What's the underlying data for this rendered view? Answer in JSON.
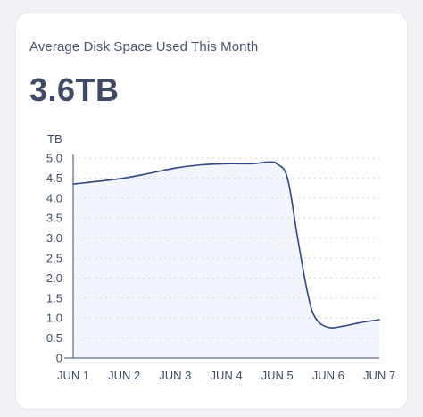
{
  "card": {
    "title": "Average Disk Space Used This Month",
    "value": "3.6TB"
  },
  "colors": {
    "line": "#2f4585",
    "area": "#f3f5fc",
    "grid": "#d6d9e0",
    "axis": "#3f4b66"
  },
  "chart_data": {
    "type": "area",
    "ylabel": "TB",
    "xlabel": "",
    "categories": [
      "JUN 1",
      "JUN 2",
      "JUN 3",
      "JUN 4",
      "JUN 5",
      "JUN 6",
      "JUN 7"
    ],
    "x": [
      1,
      1.5,
      2,
      2.5,
      3,
      3.5,
      4,
      4.5,
      4.85,
      5.0,
      5.2,
      5.4,
      5.6,
      5.75,
      6,
      6.3,
      6.6,
      7
    ],
    "values": [
      4.35,
      4.42,
      4.5,
      4.62,
      4.75,
      4.83,
      4.86,
      4.86,
      4.9,
      4.85,
      4.5,
      3.0,
      1.6,
      1.0,
      0.77,
      0.8,
      0.88,
      0.96
    ],
    "ylim": [
      0,
      5
    ],
    "yticks": [
      "0",
      "0.5",
      "1.0",
      "1.5",
      "2.0",
      "2.5",
      "3.0",
      "3.5",
      "4.0",
      "4.5",
      "5.0"
    ],
    "grid": true,
    "legend": "none"
  }
}
